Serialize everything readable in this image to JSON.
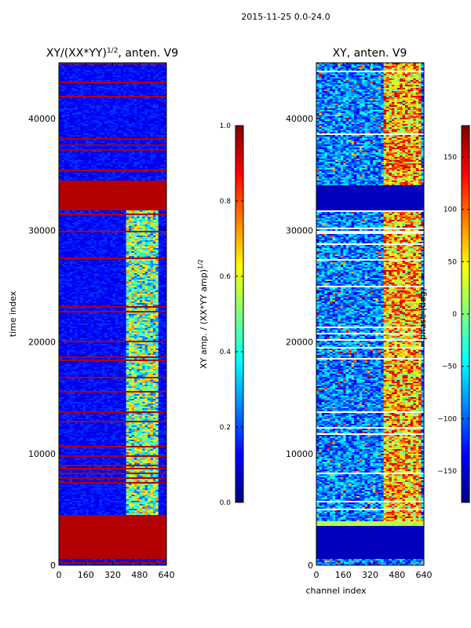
{
  "figure_title": "2015-11-25 0.0-24.0",
  "chart_data": [
    {
      "type": "heatmap",
      "title": "XY/(XX*YY)",
      "title_superscript": "1/2",
      "title_suffix": ", anten. V9",
      "xlabel": "",
      "ylabel": "time index",
      "x_range": [
        0,
        640
      ],
      "y_range": [
        0,
        45000
      ],
      "x_ticks": [
        "0",
        "160",
        "320",
        "480",
        "640"
      ],
      "y_ticks": [
        "0",
        "10000",
        "20000",
        "30000",
        "40000"
      ],
      "colorbar": {
        "label": "XY amp. / (XX*YY amp)",
        "label_superscript": "1/2",
        "range": [
          0.0,
          1.0
        ],
        "ticks": [
          "0.0",
          "0.2",
          "0.4",
          "0.6",
          "0.8",
          "1.0"
        ]
      },
      "colormap": "jet"
    },
    {
      "type": "heatmap",
      "title": "XY, anten. V9",
      "xlabel": "channel index",
      "ylabel": "",
      "x_range": [
        0,
        640
      ],
      "y_range": [
        0,
        45000
      ],
      "x_ticks": [
        "0",
        "160",
        "320",
        "480",
        "640"
      ],
      "y_ticks": [
        "0",
        "10000",
        "20000",
        "30000",
        "40000"
      ],
      "colorbar": {
        "label": "phase (deg)",
        "range": [
          -180,
          180
        ],
        "ticks": [
          "−150",
          "−100",
          "−50",
          "0",
          "50",
          "100",
          "150"
        ]
      },
      "colormap": "jet"
    }
  ],
  "colors": {
    "axes": "#000000",
    "background": "#ffffff"
  }
}
